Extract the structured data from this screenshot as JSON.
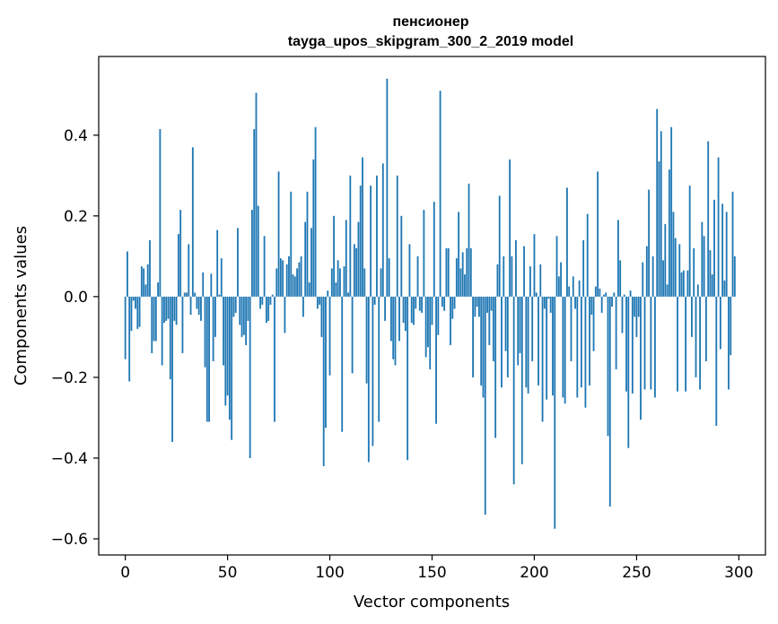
{
  "chart_data": {
    "type": "bar",
    "title": "пенсионер",
    "subtitle": "tayga_upos_skipgram_300_2_2019 model",
    "xlabel": "Vector components",
    "ylabel": "Components values",
    "xlim": [
      -13,
      313
    ],
    "ylim": [
      -0.64,
      0.595
    ],
    "xticks": [
      0,
      50,
      100,
      150,
      200,
      250,
      300
    ],
    "yticks": [
      -0.6,
      -0.4,
      -0.2,
      0.0,
      0.2,
      0.4
    ],
    "ytick_labels": [
      "−0.6",
      "−0.4",
      "−0.2",
      "0.0",
      "0.2",
      "0.4"
    ],
    "bar_color": "#1f77b4",
    "grid": false,
    "legend": "none",
    "values": [
      -0.155,
      0.112,
      -0.21,
      -0.085,
      -0.01,
      -0.03,
      -0.08,
      -0.075,
      0.075,
      0.07,
      0.03,
      0.08,
      0.14,
      -0.14,
      -0.11,
      -0.11,
      0.035,
      0.415,
      -0.17,
      -0.065,
      -0.06,
      -0.055,
      -0.205,
      -0.36,
      -0.06,
      -0.07,
      0.155,
      0.215,
      -0.14,
      0.01,
      0.01,
      0.13,
      -0.045,
      0.37,
      0.01,
      -0.03,
      -0.045,
      -0.06,
      0.06,
      -0.175,
      -0.31,
      -0.31,
      0.057,
      -0.16,
      -0.1,
      0.165,
      0.005,
      0.095,
      -0.17,
      -0.27,
      -0.245,
      -0.305,
      -0.355,
      -0.05,
      -0.04,
      0.17,
      -0.07,
      -0.1,
      -0.095,
      -0.12,
      -0.06,
      -0.4,
      0.215,
      0.415,
      0.505,
      0.225,
      -0.03,
      -0.02,
      0.15,
      -0.065,
      -0.06,
      -0.02,
      0.005,
      -0.31,
      0.07,
      0.31,
      0.095,
      0.09,
      -0.09,
      0.08,
      0.1,
      0.26,
      0.055,
      0.05,
      0.07,
      0.085,
      0.1,
      -0.05,
      0.185,
      0.26,
      0.035,
      0.17,
      0.34,
      0.42,
      -0.03,
      -0.02,
      -0.1,
      -0.42,
      -0.325,
      0.015,
      -0.195,
      0.07,
      0.2,
      0.035,
      0.09,
      0.07,
      -0.335,
      0.075,
      0.19,
      0.01,
      0.3,
      -0.19,
      0.13,
      0.12,
      0.185,
      0.275,
      0.345,
      0.07,
      -0.215,
      -0.41,
      0.275,
      -0.37,
      -0.02,
      0.3,
      -0.31,
      0.07,
      0.33,
      -0.06,
      0.54,
      0.095,
      -0.11,
      -0.155,
      -0.17,
      0.3,
      -0.11,
      0.2,
      -0.065,
      -0.085,
      -0.405,
      0.13,
      -0.065,
      -0.07,
      -0.03,
      0.1,
      -0.035,
      -0.04,
      0.215,
      -0.15,
      -0.125,
      -0.18,
      -0.07,
      0.235,
      -0.315,
      -0.095,
      0.51,
      -0.025,
      -0.035,
      0.12,
      0.12,
      -0.12,
      -0.055,
      -0.03,
      0.095,
      0.21,
      0.07,
      0.11,
      0.055,
      0.12,
      0.28,
      0.12,
      -0.2,
      -0.05,
      -0.025,
      -0.05,
      -0.22,
      -0.25,
      -0.54,
      -0.04,
      -0.12,
      -0.035,
      -0.16,
      -0.35,
      0.08,
      0.25,
      -0.225,
      0.1,
      -0.135,
      -0.2,
      0.34,
      0.1,
      -0.465,
      0.14,
      -0.17,
      -0.14,
      -0.415,
      0.125,
      -0.225,
      -0.24,
      0.075,
      -0.16,
      0.155,
      0.01,
      -0.22,
      0.08,
      -0.31,
      -0.03,
      -0.255,
      -0.005,
      -0.04,
      -0.245,
      -0.575,
      0.15,
      0.05,
      0.085,
      -0.25,
      -0.265,
      0.27,
      0.025,
      -0.16,
      0.05,
      -0.03,
      -0.25,
      0.04,
      -0.225,
      0.14,
      -0.275,
      0.205,
      -0.22,
      -0.045,
      -0.135,
      0.025,
      0.31,
      0.02,
      -0.04,
      0.005,
      0.01,
      -0.345,
      -0.52,
      -0.025,
      0.01,
      -0.18,
      0.19,
      0.09,
      -0.09,
      0.005,
      -0.235,
      -0.375,
      0.015,
      -0.24,
      -0.05,
      -0.1,
      -0.05,
      -0.305,
      0.085,
      -0.23,
      0.125,
      0.265,
      -0.23,
      0.1,
      -0.25,
      0.465,
      0.335,
      0.41,
      0.09,
      0.18,
      0.03,
      0.315,
      0.42,
      0.21,
      0.145,
      -0.235,
      0.13,
      0.06,
      0.065,
      -0.235,
      0.065,
      0.275,
      -0.1,
      0.12,
      -0.2,
      0.03,
      -0.23,
      0.185,
      0.15,
      -0.16,
      0.385,
      0.115,
      0.055,
      0.24,
      -0.32,
      0.345,
      -0.13,
      0.23,
      0.04,
      0.21,
      -0.23,
      -0.145,
      0.26,
      0.1
    ]
  }
}
